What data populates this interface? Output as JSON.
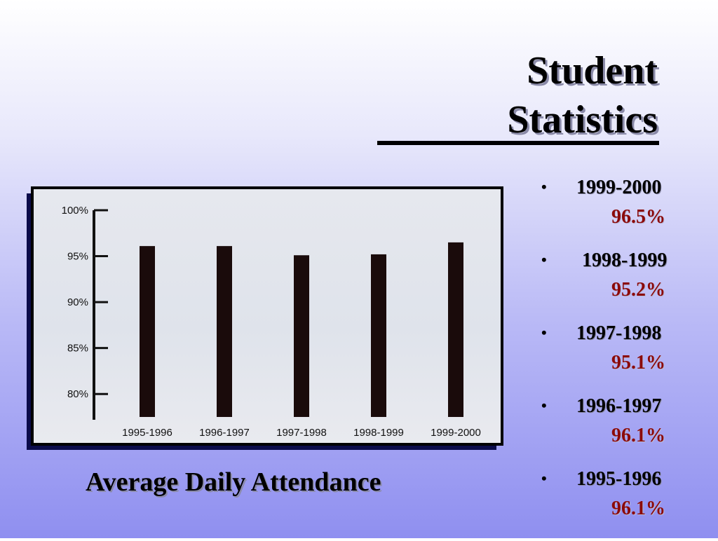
{
  "slide": {
    "title_line1": "Student",
    "title_line2": "Statistics",
    "caption": "Average Daily Attendance"
  },
  "bullets": [
    {
      "year": "1999-2000",
      "value": "96.5%"
    },
    {
      "year": "1998-1999",
      "value": "95.2%"
    },
    {
      "year": "1997-1998",
      "value": "95.1%"
    },
    {
      "year": "1996-1997",
      "value": "96.1%"
    },
    {
      "year": "1995-1996",
      "value": "96.1%"
    }
  ],
  "colors": {
    "title_shadow": "#8a8aa8",
    "value_text": "#8b0a0a",
    "bar": "#1a0b0b",
    "chart_frame": "#000000",
    "chart_shadow": "#0b0b4a"
  },
  "chart_data": {
    "type": "bar",
    "categories": [
      "1995-1996",
      "1996-1997",
      "1997-1998",
      "1998-1999",
      "1999-2000"
    ],
    "values": [
      96.1,
      96.1,
      95.1,
      95.2,
      96.5
    ],
    "ylim": [
      77.5,
      100
    ],
    "yticks": [
      80,
      85,
      90,
      95,
      100
    ],
    "ytick_labels": [
      "80%",
      "85%",
      "90%",
      "95%",
      "100%"
    ],
    "title": "",
    "xlabel": "",
    "ylabel": "",
    "grid": false
  }
}
